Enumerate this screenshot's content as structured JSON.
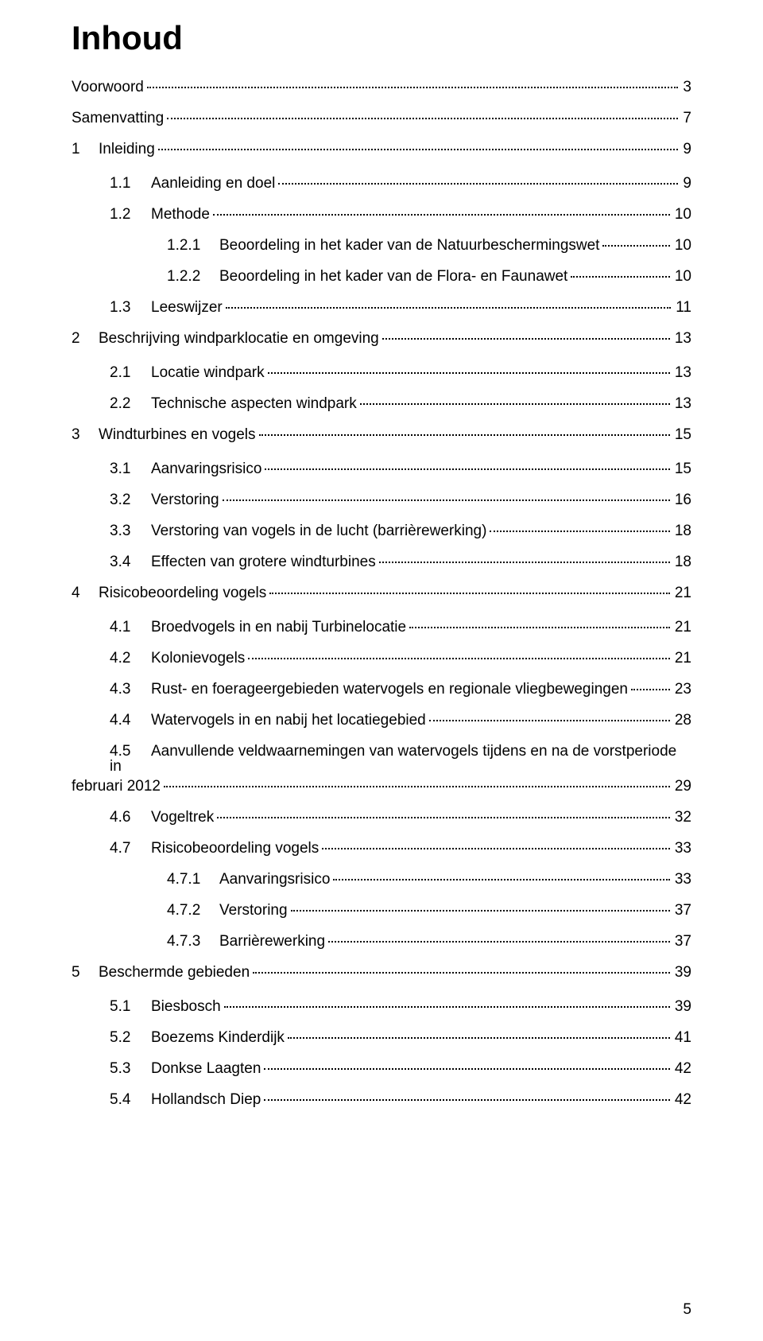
{
  "title": "Inhoud",
  "page_number": "5",
  "toc": [
    {
      "level": 0,
      "num": "",
      "label": "Voorwoord",
      "page": "3",
      "indent": "indent-1"
    },
    {
      "level": 0,
      "num": "",
      "label": "Samenvatting",
      "page": "7",
      "indent": "indent-1"
    },
    {
      "level": 1,
      "num": "1",
      "label": "Inleiding",
      "page": "9",
      "indent": "indent-1",
      "extra_gap": true
    },
    {
      "level": 2,
      "num": "1.1",
      "label": "Aanleiding en doel",
      "page": "9",
      "indent": "indent-2"
    },
    {
      "level": 2,
      "num": "1.2",
      "label": "Methode",
      "page": "10",
      "indent": "indent-2"
    },
    {
      "level": 3,
      "num": "1.2.1",
      "label": "Beoordeling in het kader van de Natuurbeschermingswet",
      "page": "10",
      "indent": "indent-2b"
    },
    {
      "level": 3,
      "num": "1.2.2",
      "label": "Beoordeling in het kader van de Flora- en Faunawet",
      "page": "10",
      "indent": "indent-2b"
    },
    {
      "level": 2,
      "num": "1.3",
      "label": "Leeswijzer",
      "page": "11",
      "indent": "indent-2"
    },
    {
      "level": 1,
      "num": "2",
      "label": "Beschrijving windparklocatie en omgeving",
      "page": "13",
      "indent": "indent-1",
      "extra_gap": true
    },
    {
      "level": 2,
      "num": "2.1",
      "label": "Locatie windpark",
      "page": "13",
      "indent": "indent-2"
    },
    {
      "level": 2,
      "num": "2.2",
      "label": "Technische aspecten windpark",
      "page": "13",
      "indent": "indent-2"
    },
    {
      "level": 1,
      "num": "3",
      "label": "Windturbines en vogels",
      "page": "15",
      "indent": "indent-1",
      "extra_gap": true
    },
    {
      "level": 2,
      "num": "3.1",
      "label": "Aanvaringsrisico",
      "page": "15",
      "indent": "indent-2"
    },
    {
      "level": 2,
      "num": "3.2",
      "label": "Verstoring",
      "page": "16",
      "indent": "indent-2"
    },
    {
      "level": 2,
      "num": "3.3",
      "label": "Verstoring van vogels in de lucht (barrièrewerking)",
      "page": "18",
      "indent": "indent-2"
    },
    {
      "level": 2,
      "num": "3.4",
      "label": "Effecten van grotere windturbines",
      "page": "18",
      "indent": "indent-2"
    },
    {
      "level": 1,
      "num": "4",
      "label": "Risicobeoordeling vogels",
      "page": "21",
      "indent": "indent-1",
      "extra_gap": true
    },
    {
      "level": 2,
      "num": "4.1",
      "label": "Broedvogels in en nabij Turbinelocatie",
      "page": "21",
      "indent": "indent-2"
    },
    {
      "level": 2,
      "num": "4.2",
      "label": "Kolonievogels",
      "page": "21",
      "indent": "indent-2"
    },
    {
      "level": 2,
      "num": "4.3",
      "label": "Rust- en foerageergebieden watervogels en regionale vliegbewegingen",
      "page": "23",
      "indent": "indent-2"
    },
    {
      "level": 2,
      "num": "4.4",
      "label": "Watervogels in en nabij het locatiegebied",
      "page": "28",
      "indent": "indent-2"
    },
    {
      "level": 2,
      "num": "4.5",
      "label_line1": "Aanvullende veldwaarnemingen van watervogels tijdens en na de vorstperiode in",
      "label_line2": "februari 2012",
      "page": "29",
      "indent": "indent-2",
      "wrap": true
    },
    {
      "level": 2,
      "num": "4.6",
      "label": "Vogeltrek",
      "page": "32",
      "indent": "indent-2"
    },
    {
      "level": 2,
      "num": "4.7",
      "label": "Risicobeoordeling vogels",
      "page": "33",
      "indent": "indent-2"
    },
    {
      "level": 3,
      "num": "4.7.1",
      "label": "Aanvaringsrisico",
      "page": "33",
      "indent": "indent-3"
    },
    {
      "level": 3,
      "num": "4.7.2",
      "label": "Verstoring",
      "page": "37",
      "indent": "indent-3"
    },
    {
      "level": 3,
      "num": "4.7.3",
      "label": "Barrièrewerking",
      "page": "37",
      "indent": "indent-3"
    },
    {
      "level": 1,
      "num": "5",
      "label": "Beschermde gebieden",
      "page": "39",
      "indent": "indent-1",
      "extra_gap": true
    },
    {
      "level": 2,
      "num": "5.1",
      "label": "Biesbosch",
      "page": "39",
      "indent": "indent-2"
    },
    {
      "level": 2,
      "num": "5.2",
      "label": "Boezems Kinderdijk",
      "page": "41",
      "indent": "indent-2"
    },
    {
      "level": 2,
      "num": "5.3",
      "label": "Donkse Laagten",
      "page": "42",
      "indent": "indent-2"
    },
    {
      "level": 2,
      "num": "5.4",
      "label": "Hollandsch Diep",
      "page": "42",
      "indent": "indent-2"
    }
  ]
}
